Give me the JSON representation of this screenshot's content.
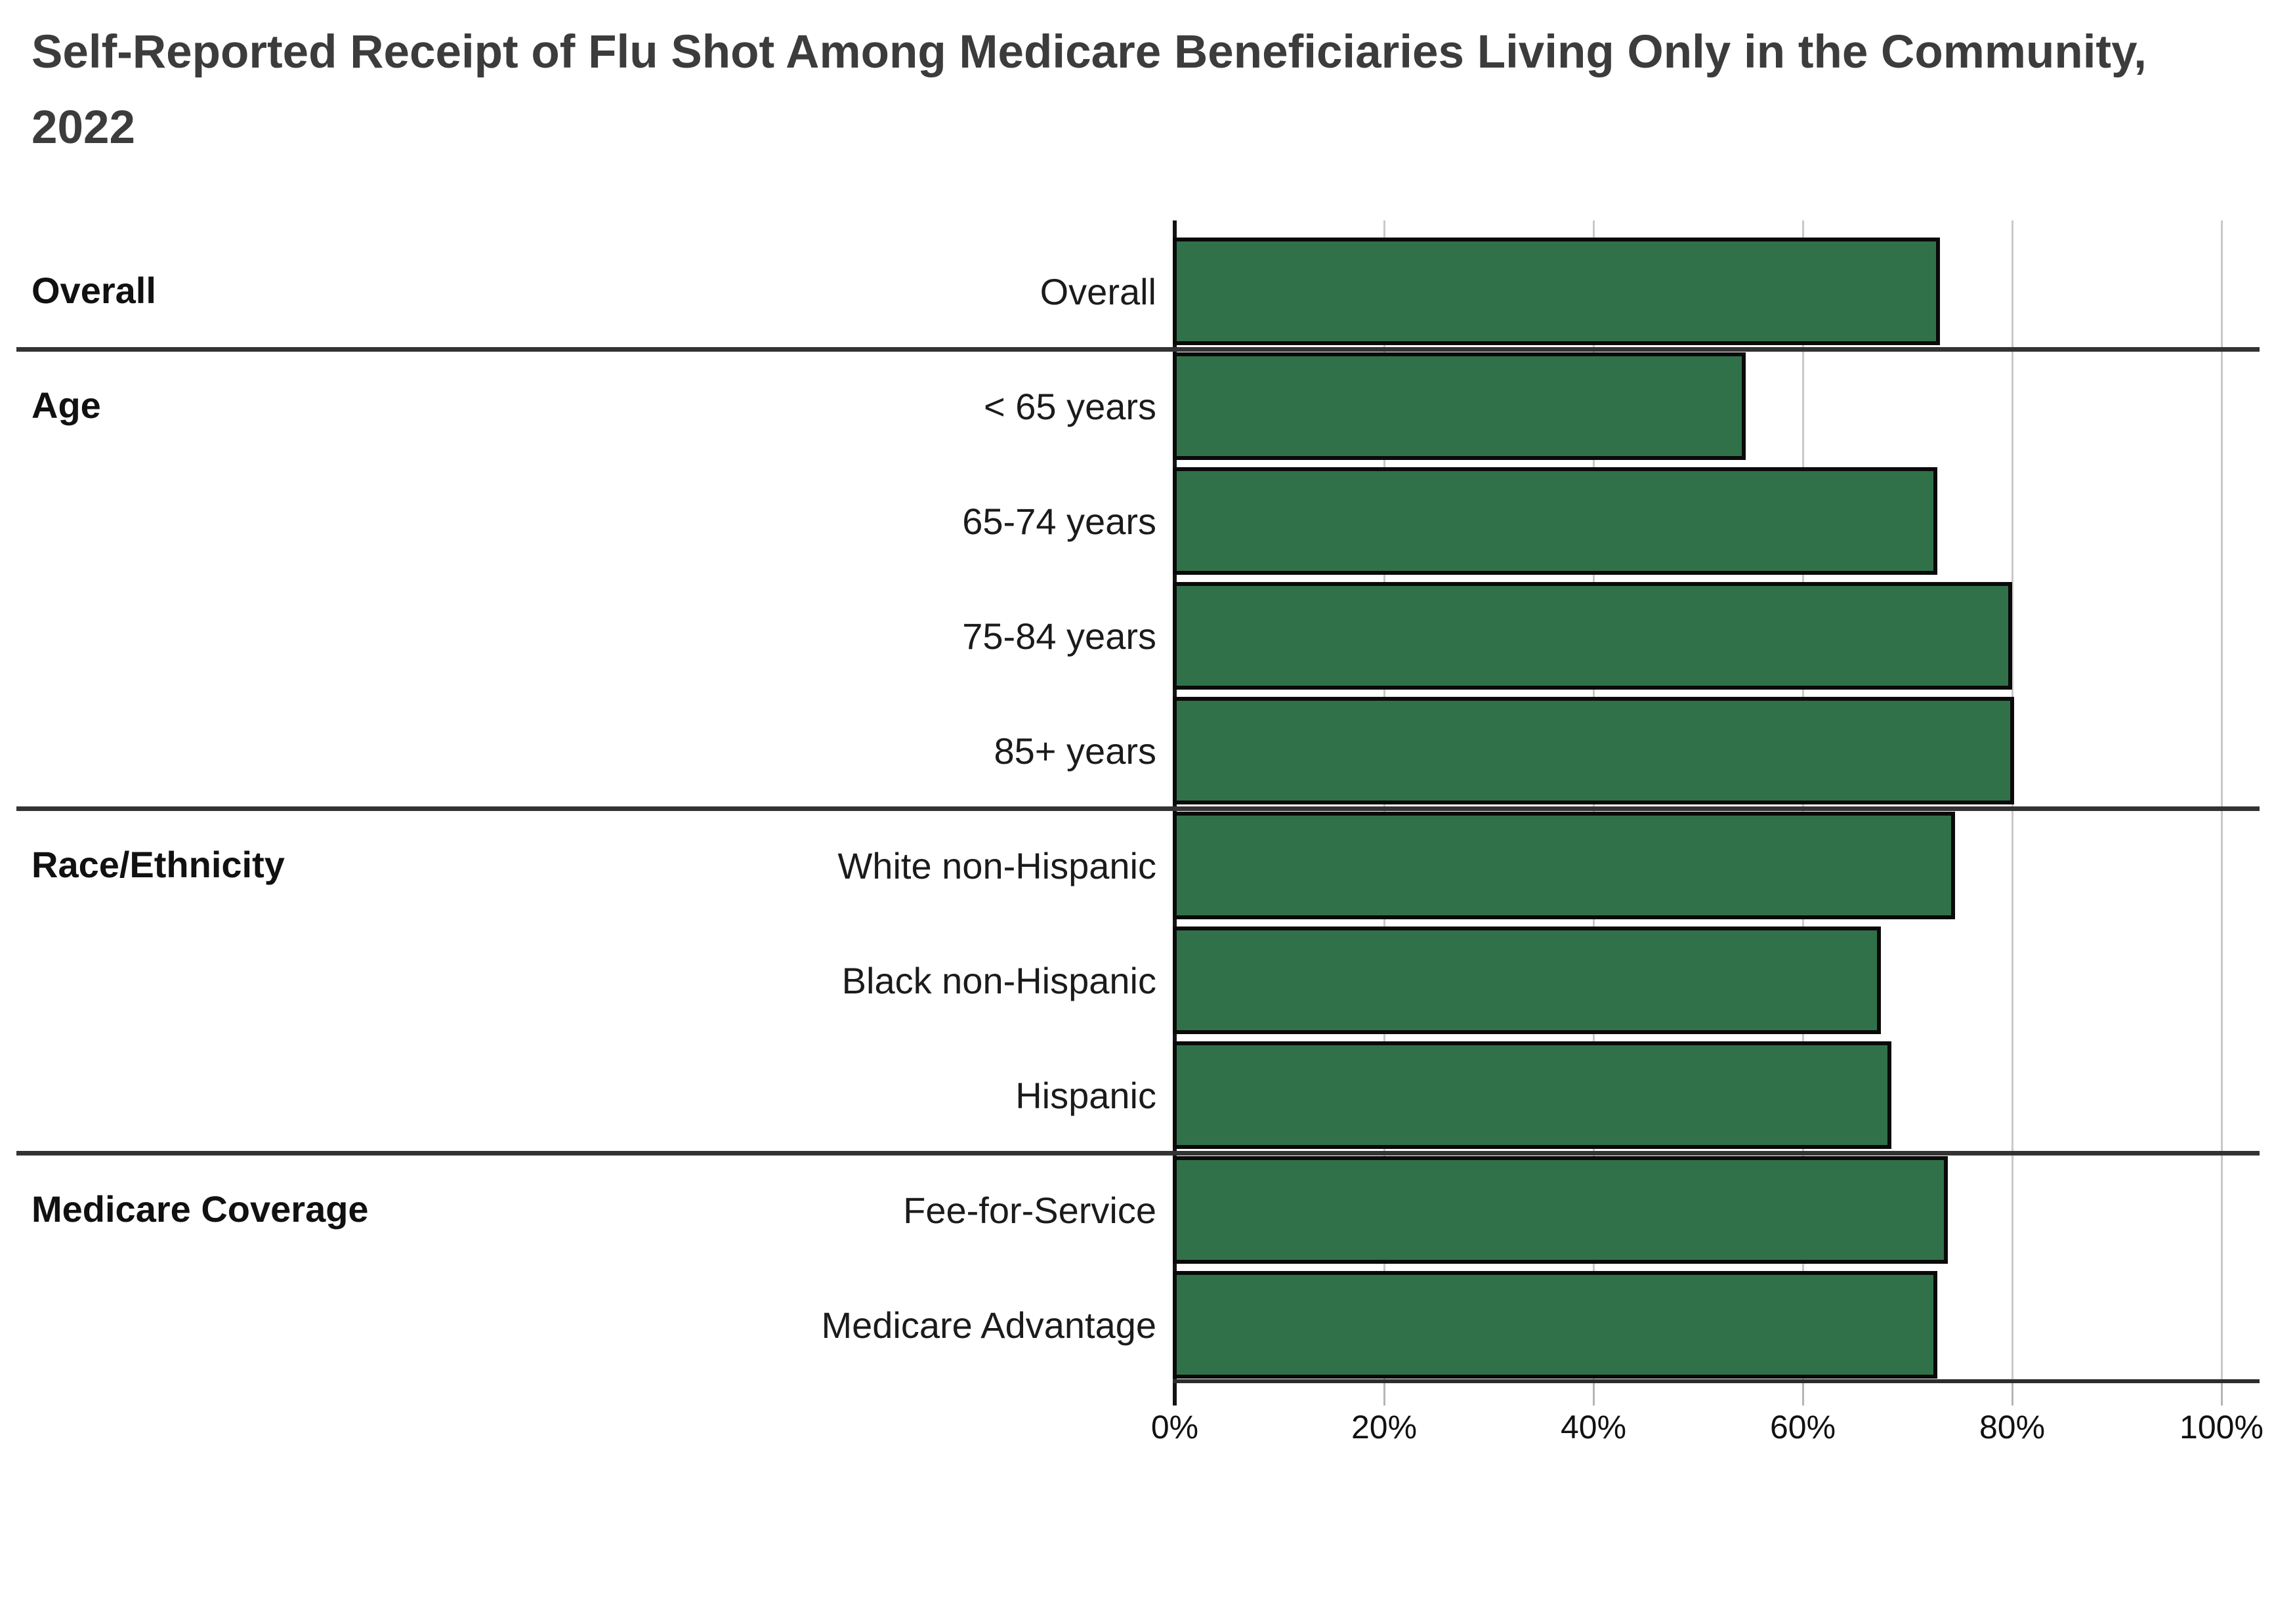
{
  "title": "Self-Reported Receipt of Flu Shot Among Medicare Beneficiaries Living Only in the Community, 2022",
  "chart_data": {
    "type": "bar",
    "orientation": "horizontal",
    "title": "Self-Reported Receipt of Flu Shot Among Medicare Beneficiaries Living Only in the Community, 2022",
    "xlabel": "",
    "ylabel": "",
    "xlim": [
      0,
      100
    ],
    "grid": true,
    "x_ticks": [
      "0%",
      "20%",
      "40%",
      "60%",
      "80%",
      "100%"
    ],
    "x_tick_values": [
      0,
      20,
      40,
      60,
      80,
      100
    ],
    "groups": [
      {
        "label": "Overall",
        "rows": [
          {
            "label": "Overall",
            "value": 72.7
          }
        ]
      },
      {
        "label": "Age",
        "rows": [
          {
            "label": "< 65 years",
            "value": 54.2
          },
          {
            "label": "65-74 years",
            "value": 72.5
          },
          {
            "label": "75-84 years",
            "value": 79.6
          },
          {
            "label": "85+ years",
            "value": 79.8
          }
        ]
      },
      {
        "label": "Race/Ethnicity",
        "rows": [
          {
            "label": "White non-Hispanic",
            "value": 74.2
          },
          {
            "label": "Black non-Hispanic",
            "value": 67.1
          },
          {
            "label": "Hispanic",
            "value": 68.1
          }
        ]
      },
      {
        "label": "Medicare Coverage",
        "rows": [
          {
            "label": "Fee-for-Service",
            "value": 73.5
          },
          {
            "label": "Medicare Advantage",
            "value": 72.5
          }
        ]
      }
    ],
    "colors": {
      "bar_fill": "#31714A",
      "bar_border": "#0A0A0A",
      "gridline": "#C9C9C9",
      "axis": "#141414",
      "separator": "#333333",
      "title_text": "#3C3C3C",
      "label_text": "#1B1B1B",
      "background": "#FFFFFF"
    }
  }
}
